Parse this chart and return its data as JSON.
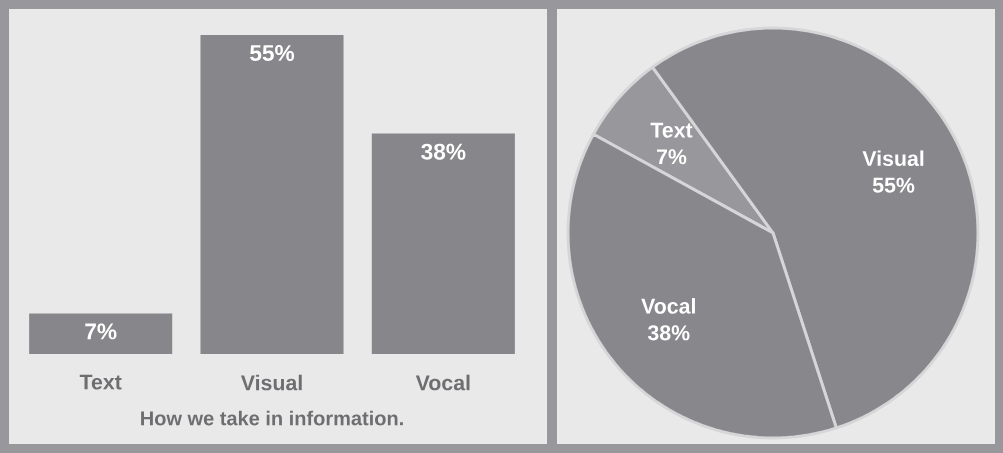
{
  "chart_data": [
    {
      "type": "bar",
      "title": "How we take in information.",
      "categories": [
        "Text",
        "Visual",
        "Vocal"
      ],
      "values": [
        7,
        55,
        38
      ],
      "value_labels": [
        "7%",
        "55%",
        "38%"
      ],
      "color": "#87878b",
      "tick_labels": "x"
    },
    {
      "type": "pie",
      "categories": [
        "Text",
        "Visual",
        "Vocal"
      ],
      "values": [
        7,
        55,
        38
      ],
      "value_labels": [
        "7%",
        "55%",
        "38%"
      ],
      "colors": [
        "#98989c",
        "#88888c",
        "#88888c"
      ]
    }
  ]
}
